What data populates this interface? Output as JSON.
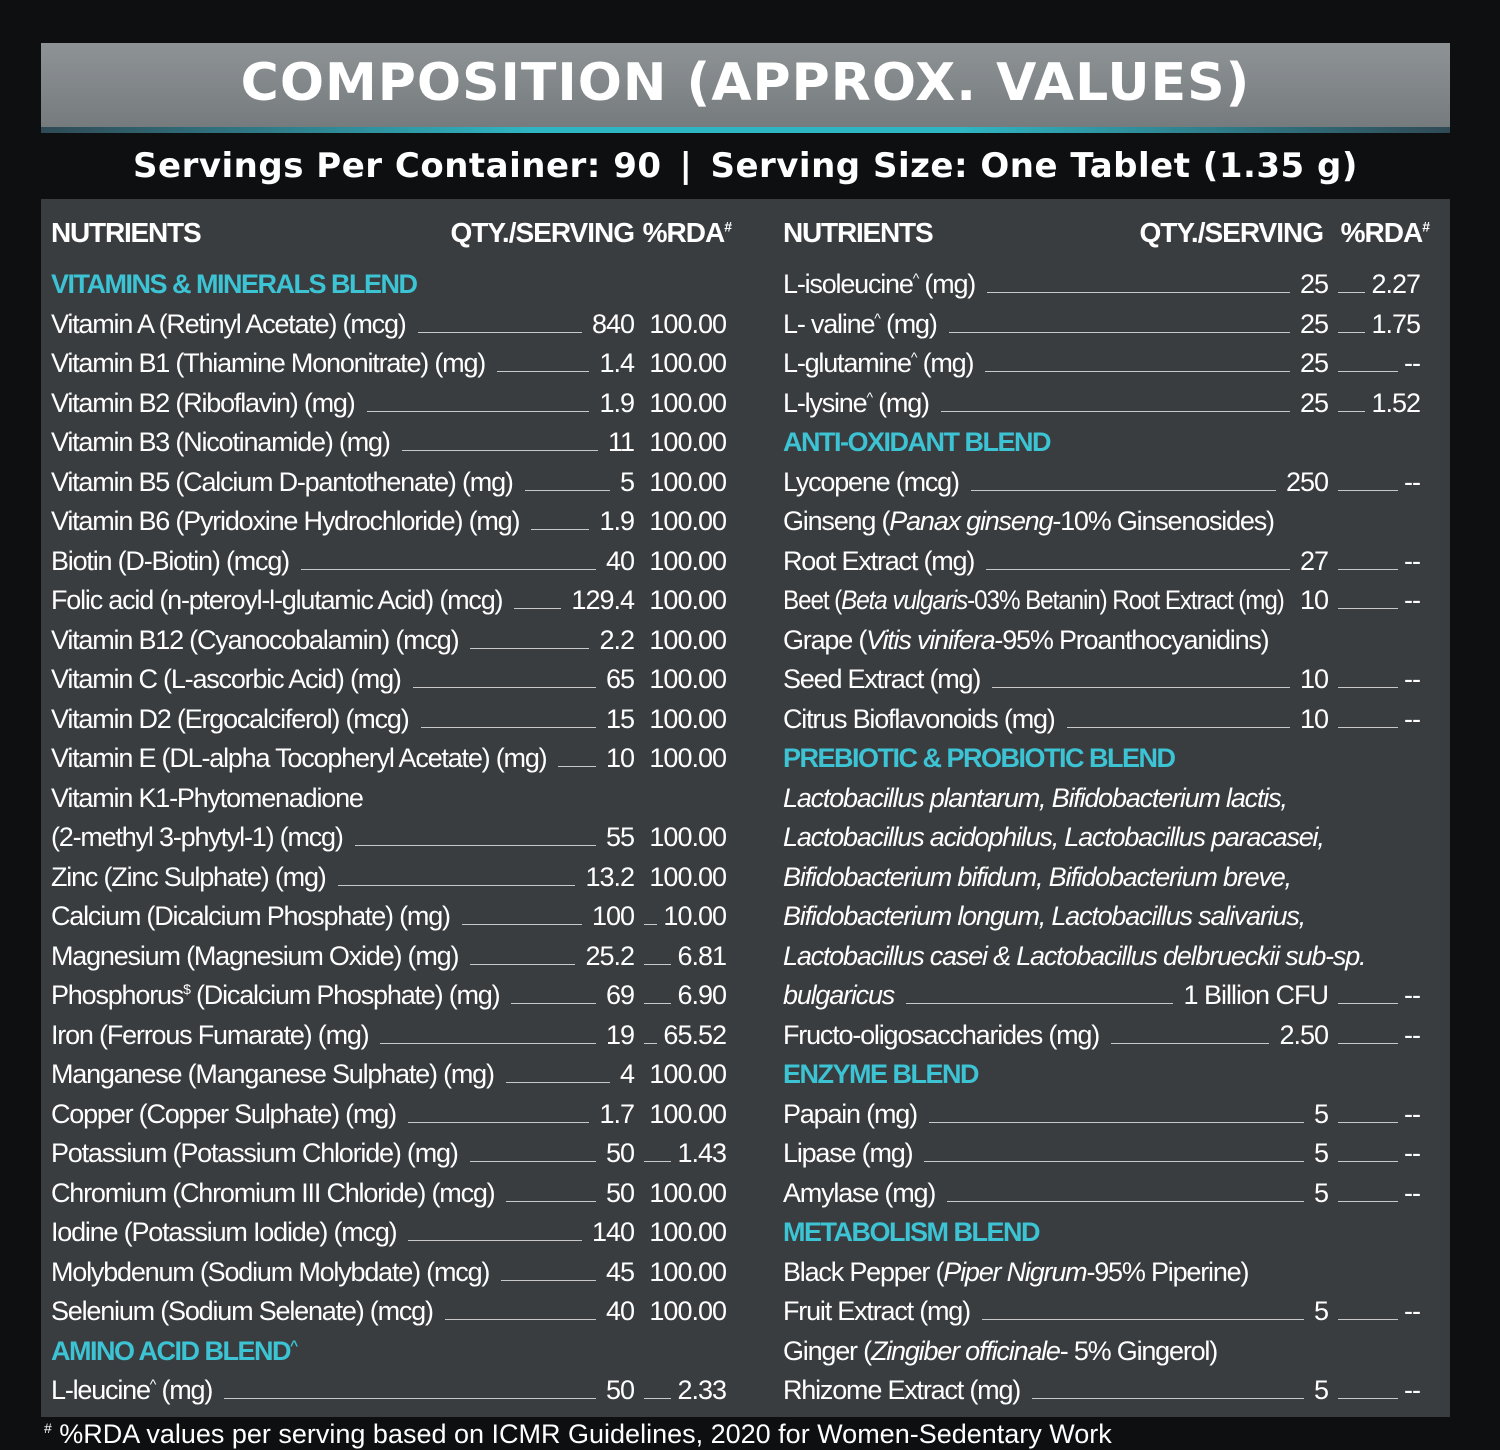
{
  "header": {
    "title": "COMPOSITION (APPROX. VALUES)",
    "servings_label": "Servings Per Container: 90",
    "separator": "|",
    "serving_size_label": "Serving Size: One Tablet (1.35 g)"
  },
  "columns": {
    "nutrients": "NUTRIENTS",
    "qty": "QTY./SERVING",
    "rda": "%RDA",
    "rda_mark": "#"
  },
  "left_rows": [
    {
      "type": "cat",
      "name": "VITAMINS & MINERALS BLEND"
    },
    {
      "type": "item",
      "name": "Vitamin A (Retinyl Acetate) (mcg)",
      "qty": "840",
      "rda": "100.00"
    },
    {
      "type": "item",
      "name": "Vitamin B1 (Thiamine Mononitrate) (mg)",
      "qty": "1.4",
      "rda": "100.00"
    },
    {
      "type": "item",
      "name": "Vitamin B2 (Riboflavin) (mg)",
      "qty": "1.9",
      "rda": "100.00"
    },
    {
      "type": "item",
      "name": "Vitamin B3 (Nicotinamide) (mg)",
      "qty": "11",
      "rda": "100.00"
    },
    {
      "type": "item",
      "name": "Vitamin B5 (Calcium D-pantothenate) (mg)",
      "qty": "5",
      "rda": "100.00"
    },
    {
      "type": "item",
      "name": "Vitamin B6 (Pyridoxine Hydrochloride) (mg)",
      "qty": "1.9",
      "rda": "100.00"
    },
    {
      "type": "item",
      "name": "Biotin (D-Biotin) (mcg)",
      "qty": "40",
      "rda": "100.00"
    },
    {
      "type": "item",
      "name": "Folic acid (n-pteroyl-l-glutamic Acid) (mcg)",
      "qty": "129.4",
      "rda": "100.00"
    },
    {
      "type": "item",
      "name": "Vitamin B12 (Cyanocobalamin) (mcg)",
      "qty": "2.2",
      "rda": "100.00"
    },
    {
      "type": "item",
      "name": "Vitamin C (L-ascorbic Acid) (mg)",
      "qty": "65",
      "rda": "100.00"
    },
    {
      "type": "item",
      "name": "Vitamin D2 (Ergocalciferol) (mcg)",
      "qty": "15",
      "rda": "100.00"
    },
    {
      "type": "item",
      "name": "Vitamin E (DL-alpha Tocopheryl Acetate) (mg)",
      "qty": "10",
      "rda": "100.00"
    },
    {
      "type": "text",
      "name": "Vitamin K1-Phytomenadione"
    },
    {
      "type": "item",
      "name": "(2-methyl 3-phytyl-1) (mcg)",
      "qty": "55",
      "rda": "100.00"
    },
    {
      "type": "item",
      "name": "Zinc (Zinc Sulphate) (mg)",
      "qty": "13.2",
      "rda": "100.00"
    },
    {
      "type": "item",
      "name": "Calcium (Dicalcium Phosphate) (mg)",
      "qty": "100",
      "rda": "10.00"
    },
    {
      "type": "item",
      "name": "Magnesium (Magnesium Oxide) (mg)",
      "qty": "25.2",
      "rda": "6.81"
    },
    {
      "type": "item",
      "name": "Phosphorus",
      "sup": "$",
      "name2": " (Dicalcium Phosphate) (mg)",
      "qty": "69",
      "rda": "6.90"
    },
    {
      "type": "item",
      "name": "Iron (Ferrous Fumarate) (mg)",
      "qty": "19",
      "rda": "65.52"
    },
    {
      "type": "item",
      "name": "Manganese (Manganese Sulphate) (mg)",
      "qty": "4",
      "rda": "100.00"
    },
    {
      "type": "item",
      "name": "Copper (Copper Sulphate) (mg)",
      "qty": "1.7",
      "rda": "100.00"
    },
    {
      "type": "item",
      "name": "Potassium (Potassium Chloride) (mg)",
      "qty": "50",
      "rda": "1.43"
    },
    {
      "type": "item",
      "name": "Chromium (Chromium III Chloride) (mcg)",
      "qty": "50",
      "rda": "100.00"
    },
    {
      "type": "item",
      "name": "Iodine (Potassium Iodide) (mcg)",
      "qty": "140",
      "rda": "100.00"
    },
    {
      "type": "item",
      "name": "Molybdenum (Sodium Molybdate) (mcg)",
      "qty": "45",
      "rda": "100.00"
    },
    {
      "type": "item",
      "name": "Selenium (Sodium Selenate) (mcg)",
      "qty": "40",
      "rda": "100.00"
    },
    {
      "type": "cat",
      "name": "AMINO ACID BLEND",
      "sup": "^"
    },
    {
      "type": "item",
      "name": "L-leucine",
      "sup": "^",
      "name2": " (mg)",
      "qty": "50",
      "rda": "2.33"
    }
  ],
  "right_rows": [
    {
      "type": "item",
      "name": "L-isoleucine",
      "sup": "^",
      "name2": " (mg)",
      "qty": "25",
      "rda": "2.27"
    },
    {
      "type": "item",
      "name": "L- valine",
      "sup": "^",
      "name2": " (mg)",
      "qty": "25",
      "rda": "1.75"
    },
    {
      "type": "item",
      "name": "L-glutamine",
      "sup": "^",
      "name2": " (mg)",
      "qty": "25",
      "rda": "--"
    },
    {
      "type": "item",
      "name": "L-lysine",
      "sup": "^",
      "name2": " (mg)",
      "qty": "25",
      "rda": "1.52"
    },
    {
      "type": "cat",
      "name": "ANTI-OXIDANT BLEND"
    },
    {
      "type": "item",
      "name": "Lycopene (mcg)",
      "qty": "250",
      "rda": "--"
    },
    {
      "type": "text",
      "name": "Ginseng (",
      "ital": "Panax ginseng",
      "name2": "-10% Ginsenosides)"
    },
    {
      "type": "item",
      "name": "Root Extract (mg)",
      "qty": "27",
      "rda": "--"
    },
    {
      "type": "item",
      "name": "Beet (",
      "ital": "Beta vulgaris",
      "name2": "-03% Betanin) Root Extract (mg)",
      "qty": "10",
      "rda": "--"
    },
    {
      "type": "text",
      "name": "Grape (",
      "ital": "Vitis vinifera",
      "name2": "-95% Proanthocyanidins)"
    },
    {
      "type": "item",
      "name": "Seed Extract (mg)",
      "qty": "10",
      "rda": "--"
    },
    {
      "type": "item",
      "name": "Citrus Bioflavonoids (mg)",
      "qty": "10",
      "rda": "--"
    },
    {
      "type": "cat",
      "name": "PREBIOTIC & PROBIOTIC BLEND"
    },
    {
      "type": "itext",
      "name": "Lactobacillus plantarum, Bifidobacterium lactis,"
    },
    {
      "type": "itext",
      "name": "Lactobacillus acidophilus, Lactobacillus paracasei,"
    },
    {
      "type": "itext",
      "name": "Bifidobacterium bifidum, Bifidobacterium breve,"
    },
    {
      "type": "itext",
      "name": "Bifidobacterium longum, Lactobacillus salivarius,"
    },
    {
      "type": "itext",
      "name": "Lactobacillus casei & Lactobacillus delbrueckii sub-sp."
    },
    {
      "type": "iitem",
      "name": "bulgaricus",
      "qty": "1 Billion CFU",
      "rda": "--"
    },
    {
      "type": "item",
      "name": "Fructo-oligosaccharides (mg)",
      "qty": "2.50",
      "rda": "--"
    },
    {
      "type": "cat",
      "name": "ENZYME BLEND"
    },
    {
      "type": "item",
      "name": "Papain (mg)",
      "qty": "5",
      "rda": "--"
    },
    {
      "type": "item",
      "name": "Lipase (mg)",
      "qty": "5",
      "rda": "--"
    },
    {
      "type": "item",
      "name": "Amylase (mg)",
      "qty": "5",
      "rda": "--"
    },
    {
      "type": "cat",
      "name": "METABOLISM BLEND"
    },
    {
      "type": "text",
      "name": "Black Pepper (",
      "ital": "Piper Nigrum",
      "name2": "-95% Piperine)"
    },
    {
      "type": "item",
      "name": "Fruit Extract (mg)",
      "qty": "5",
      "rda": "--"
    },
    {
      "type": "text",
      "name": "Ginger (",
      "ital": "Zingiber officinale",
      "name2": "- 5% Gingerol)"
    },
    {
      "type": "item",
      "name": "Rhizome Extract (mg)",
      "qty": "5",
      "rda": "--"
    }
  ],
  "footnote": {
    "mark": "#",
    "text": " %RDA values per serving based on ICMR Guidelines, 2020 for Women-Sedentary Work"
  }
}
